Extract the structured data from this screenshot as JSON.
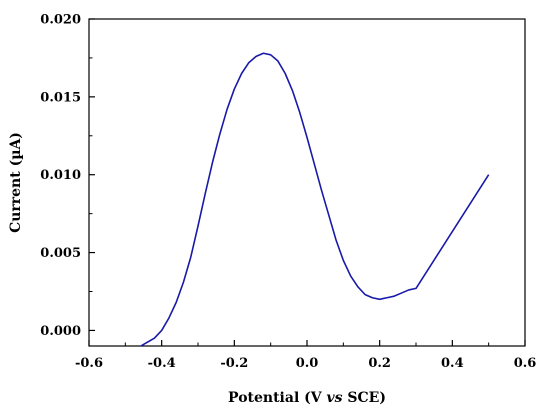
{
  "chart_data": {
    "type": "line",
    "title": "",
    "xlabel_parts": [
      "Potential (V ",
      "vs",
      " SCE)"
    ],
    "ylabel": "Current (µA)",
    "xlim": [
      -0.6,
      0.6
    ],
    "ylim": [
      -0.001,
      0.02
    ],
    "x_ticks": [
      -0.6,
      -0.4,
      -0.2,
      0.0,
      0.2,
      0.4,
      0.6
    ],
    "x_tick_labels": [
      "-0.6",
      "-0.4",
      "-0.2",
      "0.0",
      "0.2",
      "0.4",
      "0.6"
    ],
    "y_ticks": [
      0.0,
      0.005,
      0.01,
      0.015,
      0.02
    ],
    "y_tick_labels": [
      "0.000",
      "0.005",
      "0.010",
      "0.015",
      "0.020"
    ],
    "grid": false,
    "line_color": "#1a1aa8",
    "series": [
      {
        "x": [
          -0.47,
          -0.45,
          -0.42,
          -0.4,
          -0.38,
          -0.36,
          -0.34,
          -0.32,
          -0.3,
          -0.28,
          -0.26,
          -0.24,
          -0.22,
          -0.2,
          -0.18,
          -0.16,
          -0.14,
          -0.12,
          -0.1,
          -0.08,
          -0.06,
          -0.04,
          -0.02,
          0.0,
          0.02,
          0.04,
          0.06,
          0.08,
          0.1,
          0.12,
          0.14,
          0.16,
          0.18,
          0.2,
          0.22,
          0.24,
          0.26,
          0.28,
          0.3,
          0.5
        ],
        "y": [
          -0.0012,
          -0.0009,
          -0.0005,
          0.0,
          0.0008,
          0.0018,
          0.0031,
          0.0047,
          0.0067,
          0.0088,
          0.0108,
          0.0126,
          0.0142,
          0.0155,
          0.0165,
          0.0172,
          0.0176,
          0.0178,
          0.0177,
          0.0173,
          0.0165,
          0.0154,
          0.014,
          0.0124,
          0.0107,
          0.009,
          0.0074,
          0.0058,
          0.0045,
          0.0035,
          0.0028,
          0.0023,
          0.0021,
          0.002,
          0.0021,
          0.0022,
          0.0024,
          0.0026,
          0.0027,
          0.01
        ]
      }
    ]
  }
}
